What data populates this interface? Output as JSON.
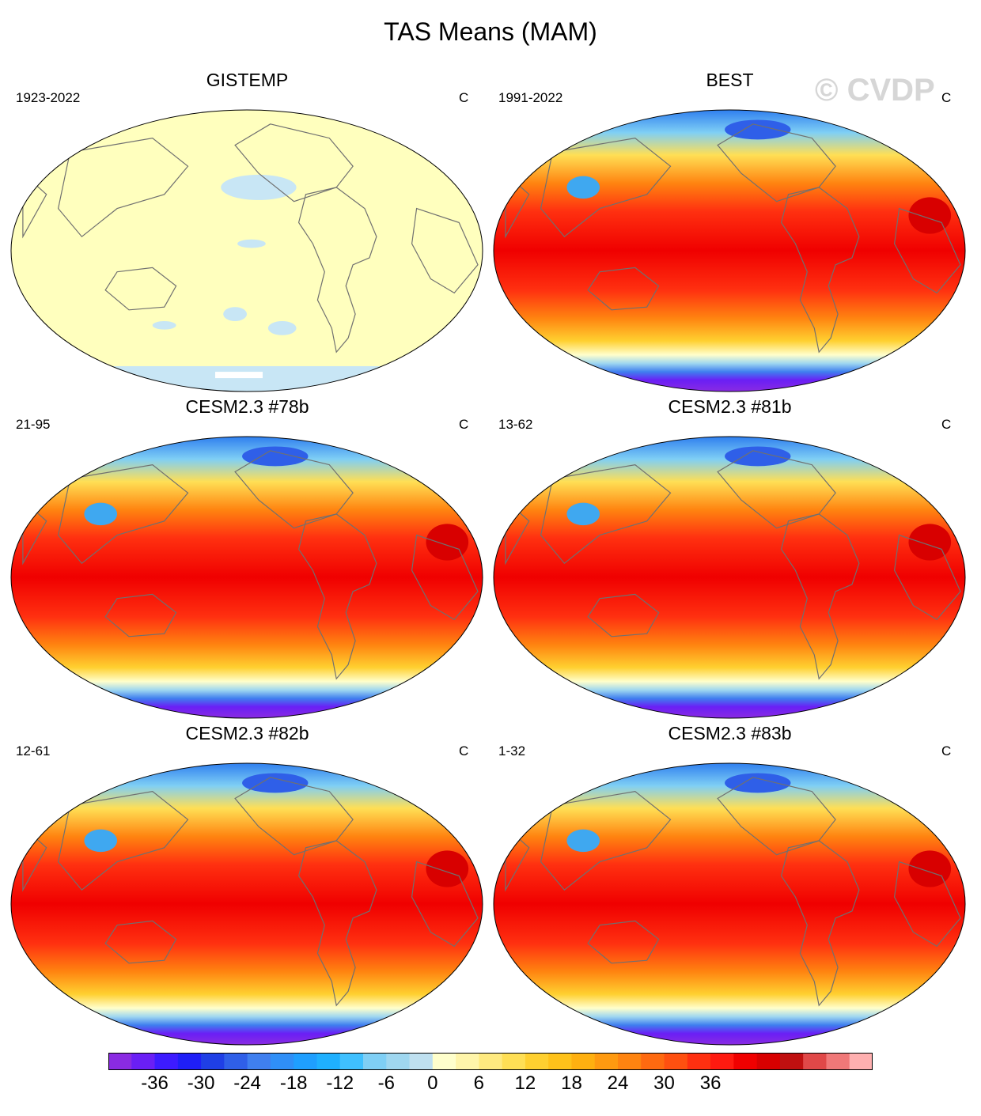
{
  "title": "TAS Means (MAM)",
  "watermark": "© CVDP",
  "panels": [
    {
      "title": "GISTEMP",
      "period": "1923-2022",
      "units": "C",
      "style": "flat"
    },
    {
      "title": "BEST",
      "period": "1991-2022",
      "units": "C",
      "style": "field"
    },
    {
      "title": "CESM2.3 #78b",
      "period": "21-95",
      "units": "C",
      "style": "field"
    },
    {
      "title": "CESM2.3 #81b",
      "period": "13-62",
      "units": "C",
      "style": "field"
    },
    {
      "title": "CESM2.3 #82b",
      "period": "12-61",
      "units": "C",
      "style": "field"
    },
    {
      "title": "CESM2.3 #83b",
      "period": "1-32",
      "units": "C",
      "style": "field"
    }
  ],
  "colorbar": {
    "colors": [
      "#8a2be2",
      "#6a1ff5",
      "#3d1bff",
      "#1f1ff7",
      "#1f3fe6",
      "#2f5fe8",
      "#3f7fef",
      "#2f8ff7",
      "#1f9fff",
      "#1fb0ff",
      "#3fc0ff",
      "#7fcff5",
      "#9fd7f0",
      "#bfe0f0",
      "#ffffcc",
      "#fff5aa",
      "#ffea80",
      "#ffdf55",
      "#ffd030",
      "#ffc21a",
      "#ffb010",
      "#ff9a10",
      "#ff8410",
      "#ff6a10",
      "#ff5010",
      "#ff3010",
      "#ff1a10",
      "#f00000",
      "#d80000",
      "#c01010",
      "#e04848",
      "#f07878",
      "#ffb0b0"
    ],
    "labels": [
      "-36",
      "-30",
      "-24",
      "-18",
      "-12",
      "-6",
      "0",
      "6",
      "12",
      "18",
      "24",
      "30",
      "36"
    ],
    "label_values": [
      -36,
      -30,
      -24,
      -18,
      -12,
      -6,
      0,
      6,
      12,
      18,
      24,
      30,
      36
    ]
  }
}
